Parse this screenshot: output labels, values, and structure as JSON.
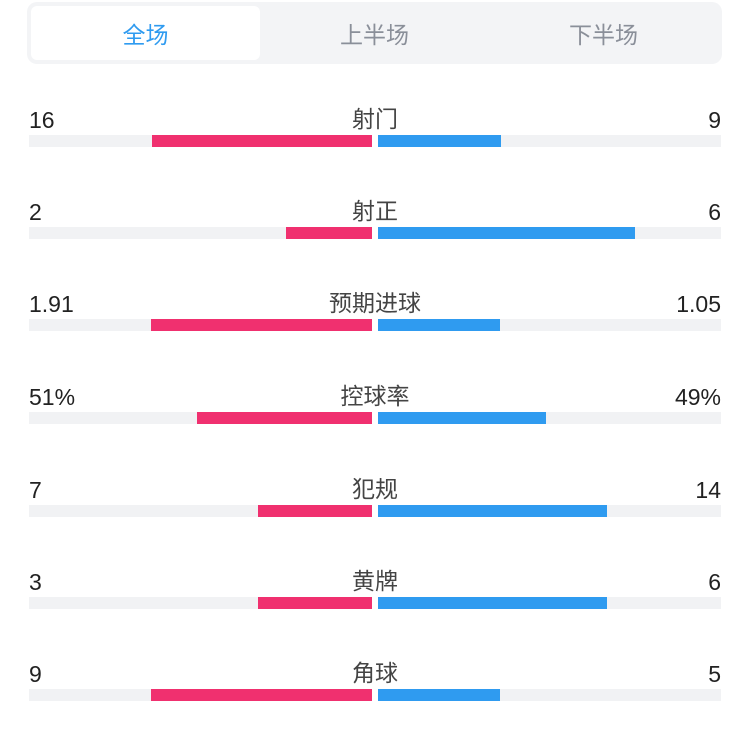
{
  "tabs": [
    "全场",
    "上半场",
    "下半场"
  ],
  "active_tab": 0,
  "colors": {
    "home": "#f0306f",
    "away": "#2f9bf0",
    "track": "#f1f2f4",
    "active_tab": "#2f9bf0"
  },
  "stats": [
    {
      "label": "射门",
      "home": "16",
      "away": "9",
      "home_fill": 0.64,
      "away_fill": 0.36
    },
    {
      "label": "射正",
      "home": "2",
      "away": "6",
      "home_fill": 0.25,
      "away_fill": 0.75
    },
    {
      "label": "预期进球",
      "home": "1.91",
      "away": "1.05",
      "home_fill": 0.645,
      "away_fill": 0.355
    },
    {
      "label": "控球率",
      "home": "51%",
      "away": "49%",
      "home_fill": 0.51,
      "away_fill": 0.49
    },
    {
      "label": "犯规",
      "home": "7",
      "away": "14",
      "home_fill": 0.333,
      "away_fill": 0.667
    },
    {
      "label": "黄牌",
      "home": "3",
      "away": "6",
      "home_fill": 0.333,
      "away_fill": 0.667
    },
    {
      "label": "角球",
      "home": "9",
      "away": "5",
      "home_fill": 0.643,
      "away_fill": 0.357
    }
  ]
}
